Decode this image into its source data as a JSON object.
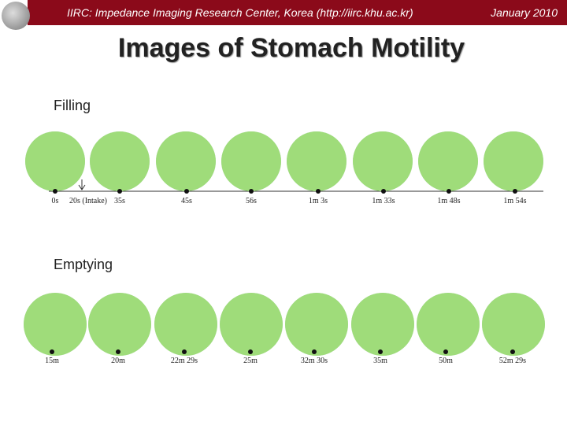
{
  "header": {
    "title": "IIRC: Impedance Imaging Research Center, Korea (http://iirc.khu.ac.kr)",
    "date": "January 2010"
  },
  "title": "Images of Stomach Motility",
  "sections": [
    {
      "label": "Filling",
      "times": [
        "0s",
        "20s (Intake)",
        "35s",
        "45s",
        "56s",
        "1m 3s",
        "1m 33s",
        "1m 48s",
        "1m 54s"
      ]
    },
    {
      "label": "Emptying",
      "times": [
        "15m",
        "20m",
        "22m 29s",
        "25m",
        "32m 30s",
        "35m",
        "50m",
        "52m 29s"
      ]
    }
  ]
}
